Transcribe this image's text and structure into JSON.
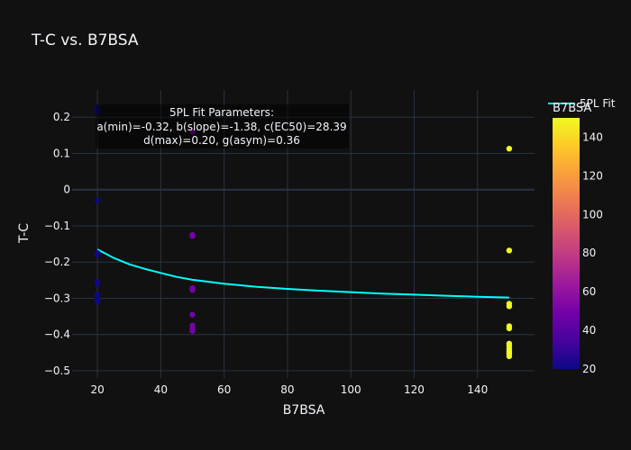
{
  "chart_data": {
    "type": "scatter",
    "title": "T-C vs. B7BSA",
    "xlabel": "B7BSA",
    "ylabel": "T-C",
    "xlim": [
      12,
      158
    ],
    "ylim": [
      -0.52,
      0.275
    ],
    "x_ticks": [
      20,
      40,
      60,
      80,
      100,
      120,
      140
    ],
    "y_ticks": [
      -0.5,
      -0.4,
      -0.3,
      -0.2,
      -0.1,
      0,
      0.1,
      0.2
    ],
    "y_tick_labels": [
      "−0.5",
      "−0.4",
      "−0.3",
      "−0.2",
      "−0.1",
      "0",
      "0.1",
      "0.2"
    ],
    "grid": true,
    "colorscale": "plasma",
    "color_range": [
      20,
      150
    ],
    "colorbar": {
      "title": "B7BSA",
      "ticks": [
        20,
        40,
        60,
        80,
        100,
        120,
        140
      ],
      "tick_labels": [
        "20",
        "40",
        "60",
        "80",
        "100",
        "120",
        "140"
      ]
    },
    "series": [
      {
        "type": "markers",
        "color_by": "x",
        "points": [
          {
            "x": 20,
            "y": 0.225
          },
          {
            "x": 20,
            "y": 0.215
          },
          {
            "x": 20,
            "y": -0.03
          },
          {
            "x": 20,
            "y": -0.175
          },
          {
            "x": 20,
            "y": -0.18
          },
          {
            "x": 20,
            "y": -0.255
          },
          {
            "x": 20,
            "y": -0.26
          },
          {
            "x": 20,
            "y": -0.29
          },
          {
            "x": 20,
            "y": -0.3
          },
          {
            "x": 20,
            "y": -0.305
          },
          {
            "x": 20,
            "y": -0.31
          },
          {
            "x": 50,
            "y": 0.16
          },
          {
            "x": 50,
            "y": -0.125
          },
          {
            "x": 50,
            "y": -0.128
          },
          {
            "x": 50,
            "y": -0.272
          },
          {
            "x": 50,
            "y": -0.277
          },
          {
            "x": 50,
            "y": -0.345
          },
          {
            "x": 50,
            "y": -0.375
          },
          {
            "x": 50,
            "y": -0.383
          },
          {
            "x": 50,
            "y": -0.39
          },
          {
            "x": 150,
            "y": 0.113
          },
          {
            "x": 150,
            "y": -0.168
          },
          {
            "x": 150,
            "y": -0.315
          },
          {
            "x": 150,
            "y": -0.322
          },
          {
            "x": 150,
            "y": -0.377
          },
          {
            "x": 150,
            "y": -0.383
          },
          {
            "x": 150,
            "y": -0.425
          },
          {
            "x": 150,
            "y": -0.432
          },
          {
            "x": 150,
            "y": -0.44
          },
          {
            "x": 150,
            "y": -0.447
          },
          {
            "x": 150,
            "y": -0.453
          },
          {
            "x": 150,
            "y": -0.46
          }
        ]
      },
      {
        "name": "5PL Fit",
        "type": "line",
        "color": "#00ffff",
        "x": [
          20,
          25,
          30,
          35,
          40,
          45,
          50,
          60,
          70,
          80,
          90,
          100,
          110,
          120,
          130,
          140,
          150
        ],
        "y": [
          -0.165,
          -0.188,
          -0.206,
          -0.219,
          -0.23,
          -0.241,
          -0.249,
          -0.26,
          -0.268,
          -0.274,
          -0.279,
          -0.283,
          -0.287,
          -0.29,
          -0.293,
          -0.296,
          -0.298
        ]
      }
    ],
    "annotation": {
      "lines": [
        "5PL Fit Parameters:",
        "a(min)=-0.32, b(slope)=-1.38, c(EC50)=28.39",
        "d(max)=0.20, g(asym)=0.36"
      ]
    },
    "legend": {
      "position": "top-right",
      "entries": [
        "5PL Fit"
      ]
    }
  },
  "colors": {
    "background": "#111111",
    "grid": "#283442",
    "zero_line": "#283442",
    "text": "#f2f5fa",
    "fit_line": "#00ffff",
    "annotation_bg": "#000000"
  }
}
